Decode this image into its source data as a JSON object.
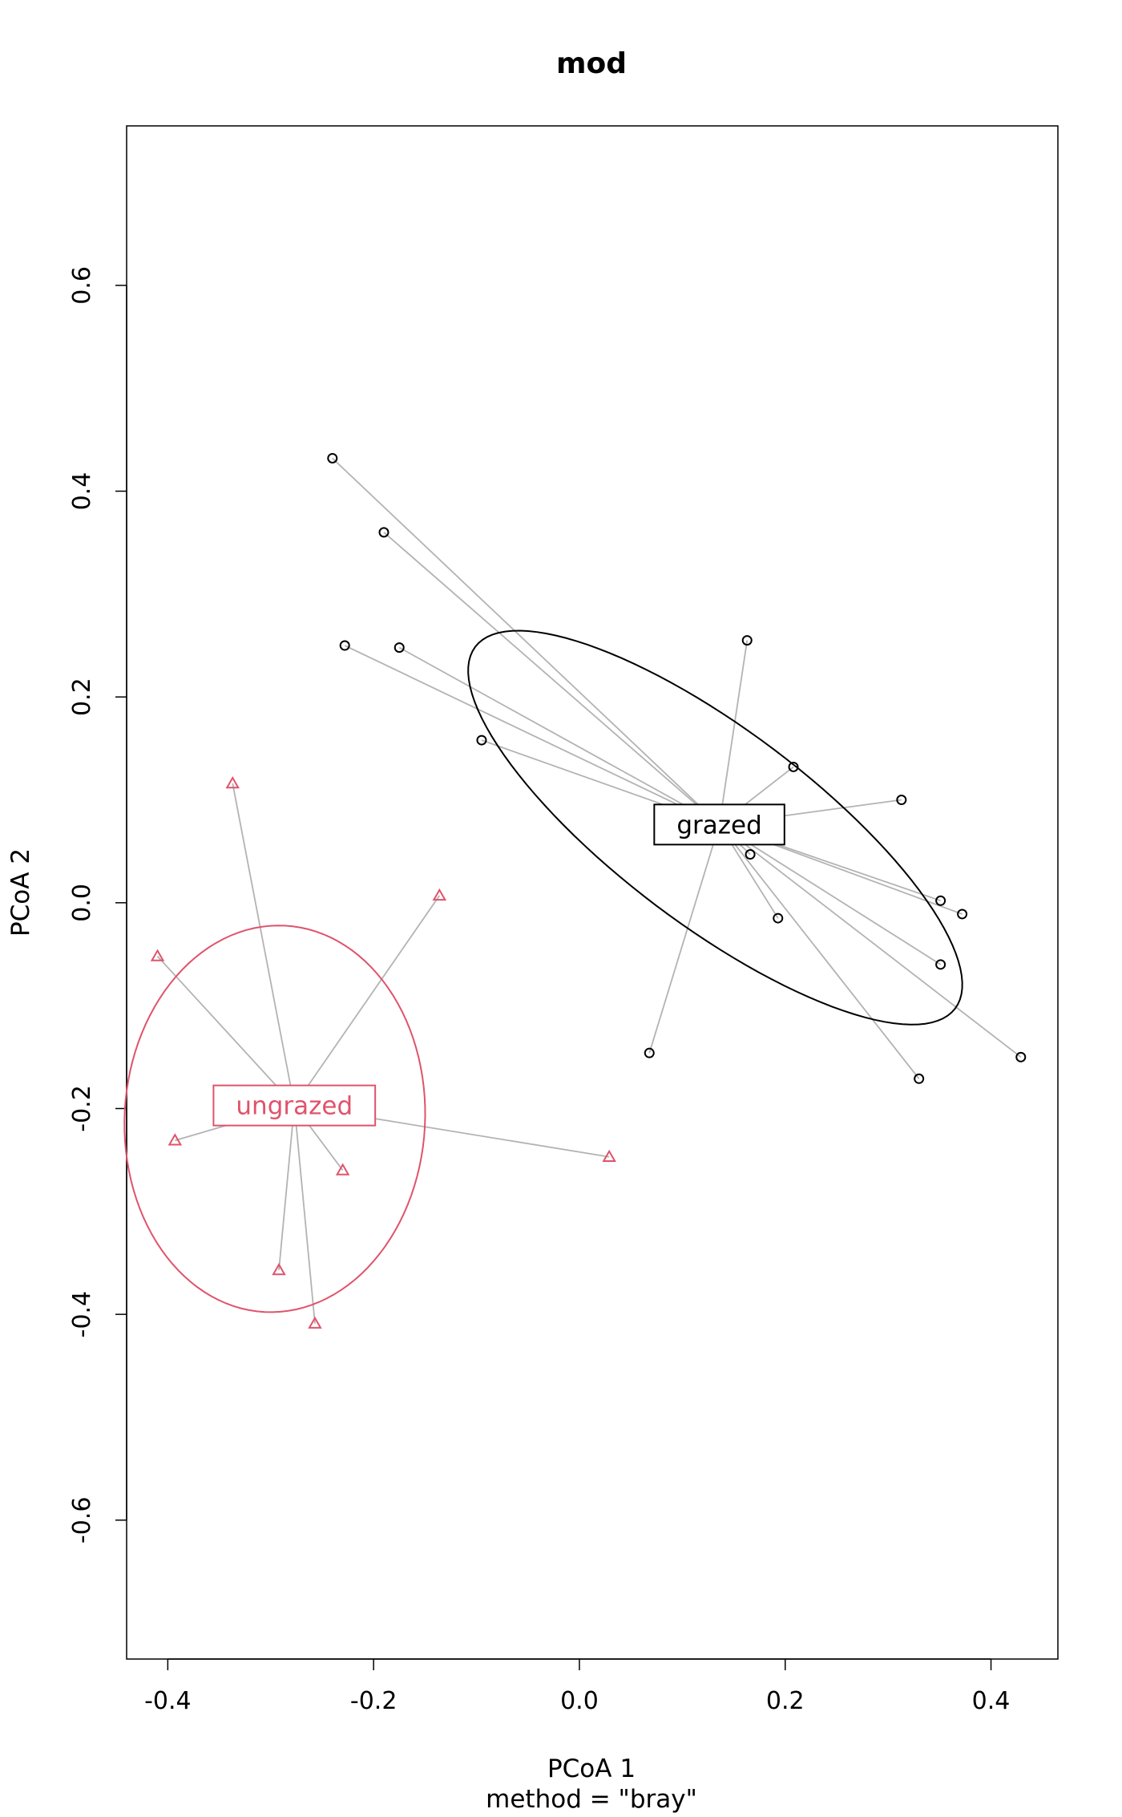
{
  "chart_data": {
    "type": "scatter",
    "title": "mod",
    "xlabel": "PCoA 1",
    "sublabel": "method = \"bray\"",
    "ylabel": "PCoA 2",
    "xlim": [
      -0.44,
      0.465
    ],
    "ylim": [
      -0.735,
      0.755
    ],
    "x_ticks": [
      -0.4,
      -0.2,
      0.0,
      0.2,
      0.4
    ],
    "x_tick_labels": [
      "-0.4",
      "-0.2",
      "0.0",
      "0.2",
      "0.4"
    ],
    "y_ticks": [
      -0.6,
      -0.4,
      -0.2,
      0.0,
      0.2,
      0.4,
      0.6
    ],
    "y_tick_labels": [
      "-0.6",
      "-0.4",
      "-0.2",
      "0.0",
      "0.2",
      "0.4",
      "0.6"
    ],
    "grid": false,
    "series": [
      {
        "name": "grazed",
        "color": "#000000",
        "marker": "circle",
        "centroid": [
          0.136,
          0.076
        ],
        "ellipse": {
          "center": [
            0.132,
            0.073
          ],
          "semi_major": 0.292,
          "semi_minor": 0.095,
          "angle_deg": -37
        },
        "points": [
          [
            -0.24,
            0.432
          ],
          [
            -0.19,
            0.36
          ],
          [
            -0.228,
            0.25
          ],
          [
            -0.175,
            0.248
          ],
          [
            -0.095,
            0.158
          ],
          [
            0.163,
            0.255
          ],
          [
            0.208,
            0.132
          ],
          [
            0.313,
            0.1
          ],
          [
            0.166,
            0.047
          ],
          [
            0.193,
            -0.015
          ],
          [
            0.351,
            0.002
          ],
          [
            0.372,
            -0.011
          ],
          [
            0.351,
            -0.06
          ],
          [
            0.429,
            -0.15
          ],
          [
            0.33,
            -0.171
          ],
          [
            0.068,
            -0.146
          ]
        ]
      },
      {
        "name": "ungrazed",
        "color": "#df536b",
        "marker": "triangle",
        "centroid": [
          -0.277,
          -0.197
        ],
        "ellipse": {
          "center": [
            -0.296,
            -0.21
          ],
          "semi_major": 0.188,
          "semi_minor": 0.146,
          "angle_deg": 87
        },
        "points": [
          [
            -0.337,
            0.116
          ],
          [
            -0.136,
            0.007
          ],
          [
            -0.41,
            -0.052
          ],
          [
            -0.393,
            -0.231
          ],
          [
            -0.23,
            -0.26
          ],
          [
            -0.292,
            -0.357
          ],
          [
            -0.257,
            -0.409
          ],
          [
            0.029,
            -0.247
          ]
        ]
      }
    ]
  }
}
